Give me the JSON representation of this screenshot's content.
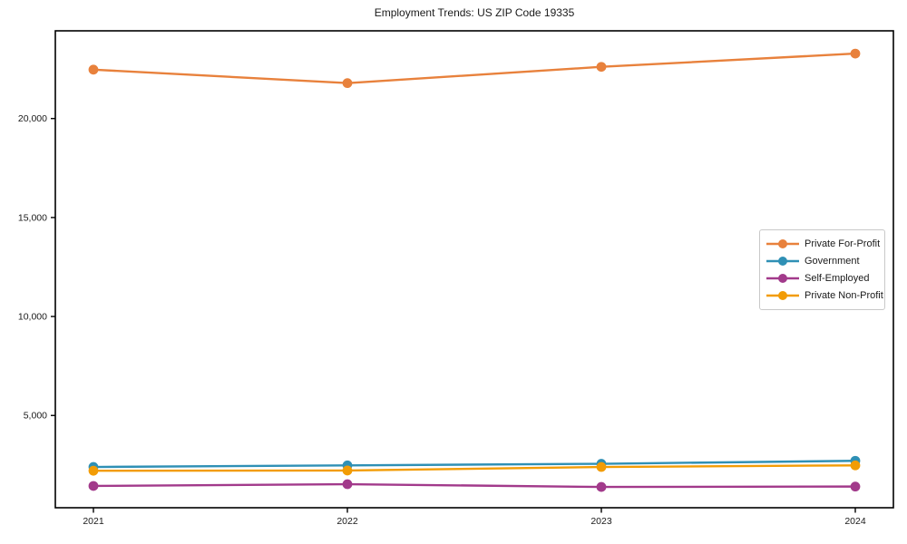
{
  "title": "Employment Trends: US ZIP Code 19335",
  "chart_data": {
    "type": "line",
    "x": [
      "2021",
      "2022",
      "2023",
      "2024"
    ],
    "series": [
      {
        "name": "Private For-Profit",
        "color": "#e8813c",
        "values": [
          22470,
          21790,
          22610,
          23280
        ]
      },
      {
        "name": "Government",
        "color": "#2f90b5",
        "values": [
          2400,
          2480,
          2560,
          2710
        ]
      },
      {
        "name": "Self-Employed",
        "color": "#a23a8b",
        "values": [
          1440,
          1530,
          1390,
          1410
        ]
      },
      {
        "name": "Private Non-Profit",
        "color": "#f29c05",
        "values": [
          2210,
          2220,
          2400,
          2480
        ]
      }
    ],
    "title": "Employment Trends: US ZIP Code 19335",
    "xlabel": "",
    "ylabel": "",
    "ylim": [
      340,
      24430
    ],
    "yticks": [
      5000,
      10000,
      15000,
      20000
    ],
    "ytick_labels": [
      "5,000",
      "10,000",
      "15,000",
      "20,000"
    ],
    "xtick_labels": [
      "2021",
      "2022",
      "2023",
      "2024"
    ],
    "grid": false,
    "legend_position": "center-right-inside",
    "axis_color": "#000000",
    "text_color": "#1a1a1a"
  }
}
